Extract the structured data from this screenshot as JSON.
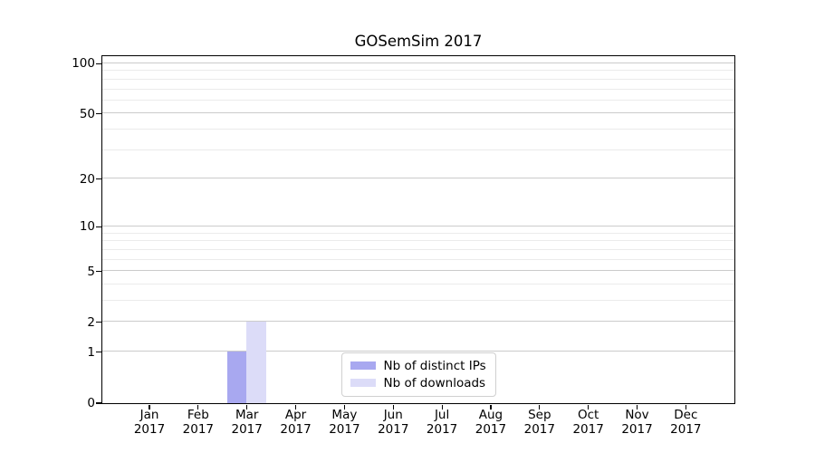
{
  "title": "GOSemSim 2017",
  "chart_data": {
    "type": "bar",
    "title": "GOSemSim 2017",
    "categories": [
      "Jan",
      "Feb",
      "Mar",
      "Apr",
      "May",
      "Jun",
      "Jul",
      "Aug",
      "Sep",
      "Oct",
      "Nov",
      "Dec"
    ],
    "category_year": "2017",
    "series": [
      {
        "name": "Nb of distinct IPs",
        "color": "#a8a8f0",
        "values": [
          0,
          0,
          1,
          0,
          0,
          0,
          0,
          0,
          0,
          0,
          0,
          0
        ]
      },
      {
        "name": "Nb of downloads",
        "color": "#dcdcf8",
        "values": [
          0,
          0,
          2,
          0,
          0,
          0,
          0,
          0,
          0,
          0,
          0,
          0
        ]
      }
    ],
    "xlabel": "",
    "ylabel": "",
    "y_axis": {
      "scale": "log1p",
      "ticks": [
        0,
        1,
        2,
        5,
        10,
        20,
        50,
        100
      ],
      "minor_ticks": [
        3,
        4,
        6,
        7,
        8,
        9,
        30,
        40,
        60,
        70,
        80,
        90
      ],
      "max": 111
    },
    "grid": {
      "visible": true,
      "major_color": "#cbcbcb",
      "minor_color": "#ebebeb"
    },
    "legend": {
      "position": "bottom-center-inside",
      "border_color": "#d0d0d0"
    }
  }
}
